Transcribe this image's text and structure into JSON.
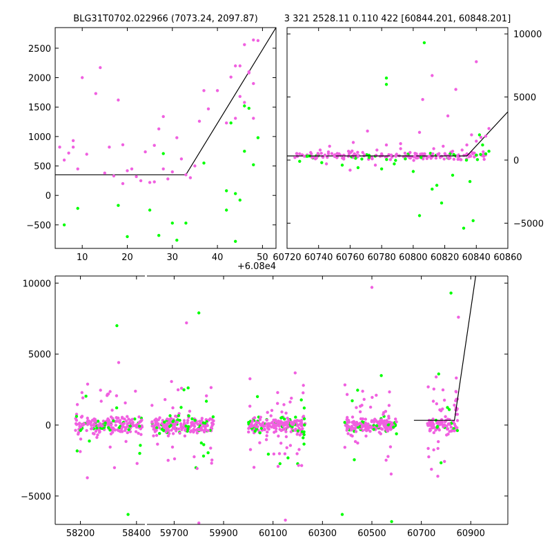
{
  "colors": {
    "magenta": "#f060e0",
    "green": "#00ff00",
    "model": "#000000"
  },
  "chart_data": [
    {
      "type": "scatter",
      "panel": "zoom-peak",
      "title": "BLG31T0702.022966 (7073.24, 2097.87)",
      "xlim": [
        4,
        53
      ],
      "ylim": [
        -900,
        2850
      ],
      "x_offset_label": "+6.08e4",
      "xticks": [
        10,
        20,
        30,
        40,
        50
      ],
      "yticks": [
        -500,
        0,
        500,
        1000,
        1500,
        2000,
        2500
      ],
      "xtick_labels": [
        "10",
        "20",
        "30",
        "40",
        "50"
      ],
      "ytick_labels": [
        "−500",
        "0",
        "500",
        "1000",
        "1500",
        "2000",
        "2500"
      ],
      "model_line": {
        "x": [
          4,
          33,
          53
        ],
        "y": [
          350,
          350,
          2850
        ]
      },
      "series": [
        {
          "name": "magenta",
          "x": [
            5,
            6,
            7,
            8,
            8,
            9,
            10,
            11,
            13,
            14,
            15,
            16,
            17,
            18,
            19,
            19,
            20,
            21,
            22,
            23,
            24,
            25,
            26,
            26,
            27,
            28,
            28,
            29,
            30,
            31,
            32,
            33,
            34,
            35,
            36,
            37,
            38,
            40,
            42,
            43,
            44,
            44,
            45,
            46,
            46,
            47,
            48,
            48,
            49,
            48,
            47,
            45
          ],
          "y": [
            820,
            600,
            720,
            930,
            820,
            450,
            2000,
            700,
            1730,
            2170,
            380,
            820,
            330,
            1620,
            200,
            860,
            420,
            450,
            320,
            250,
            740,
            220,
            850,
            230,
            1130,
            1340,
            450,
            280,
            400,
            980,
            620,
            350,
            300,
            500,
            1260,
            1780,
            1470,
            1780,
            1230,
            2010,
            1310,
            2200,
            1680,
            2560,
            1580,
            2100,
            1310,
            1900,
            2630,
            2640,
            2080,
            2200
          ]
        },
        {
          "name": "green",
          "x": [
            6,
            9,
            18,
            20,
            25,
            27,
            28,
            30,
            31,
            33,
            42,
            43,
            44,
            44,
            46,
            46,
            47,
            48,
            49,
            42,
            37,
            45
          ],
          "y": [
            -500,
            -220,
            -170,
            -700,
            -250,
            -680,
            710,
            -470,
            -760,
            -470,
            -250,
            1230,
            30,
            -780,
            750,
            1520,
            1480,
            520,
            980,
            80,
            550,
            -80
          ]
        }
      ]
    },
    {
      "type": "scatter",
      "panel": "peak-window",
      "title": "3 321 2528.11 0.110 422 [60844.201, 60848.201]",
      "xlim": [
        60720,
        60860
      ],
      "ylim": [
        -7000,
        10500
      ],
      "xticks": [
        60720,
        60740,
        60760,
        60780,
        60800,
        60820,
        60840,
        60860
      ],
      "yticks": [
        -5000,
        0,
        5000,
        10000
      ],
      "xtick_labels": [
        "60720",
        "60740",
        "60760",
        "60780",
        "60800",
        "60820",
        "60840",
        "60860"
      ],
      "ytick_labels": [
        "−5000",
        "0",
        "5000",
        "10000"
      ],
      "model_line": {
        "x": [
          60720,
          60834,
          60860
        ],
        "y": [
          330,
          330,
          3830
        ]
      },
      "series": [
        {
          "name": "magenta",
          "x": [
            60725,
            60728,
            60731,
            60735,
            60738,
            60741,
            60744,
            60747,
            60750,
            60753,
            60756,
            60759,
            60762,
            60765,
            60768,
            60771,
            60774,
            60777,
            60780,
            60783,
            60786,
            60789,
            60792,
            60795,
            60798,
            60801,
            60804,
            60807,
            60810,
            60813,
            60816,
            60819,
            60822,
            60825,
            60828,
            60831,
            60834,
            60837,
            60840,
            60843,
            60846,
            60848,
            60827,
            60806,
            60812,
            60792,
            60840,
            60822,
            60776,
            60760,
            60745
          ],
          "y": [
            200,
            500,
            300,
            600,
            100,
            800,
            400,
            1100,
            300,
            500,
            200,
            700,
            1400,
            300,
            600,
            2300,
            100,
            800,
            500,
            1200,
            400,
            300,
            900,
            100,
            600,
            300,
            2200,
            500,
            300,
            900,
            400,
            1100,
            200,
            700,
            300,
            800,
            1200,
            2000,
            1500,
            1800,
            1900,
            2500,
            5600,
            4800,
            6700,
            1300,
            7800,
            3500,
            -400,
            -800,
            -300
          ]
        },
        {
          "name": "green",
          "x": [
            60728,
            60733,
            60742,
            60755,
            60765,
            60772,
            60780,
            60783,
            60788,
            60795,
            60800,
            60804,
            60807,
            60812,
            60818,
            60825,
            60832,
            60838,
            60842,
            60844,
            60846,
            60848,
            60836,
            60815,
            60805,
            60783
          ],
          "y": [
            -100,
            300,
            -200,
            -400,
            -600,
            200,
            -700,
            6500,
            -300,
            100,
            -900,
            -4400,
            9300,
            -2300,
            -3400,
            -1200,
            -5400,
            -4800,
            2000,
            1200,
            500,
            700,
            -1700,
            -2000,
            200,
            6000
          ]
        }
      ]
    },
    {
      "type": "scatter",
      "panel": "full-light-curve",
      "xlim": [
        58110,
        61050
      ],
      "ylim": [
        -7000,
        10500
      ],
      "xticks": [
        58200,
        58400,
        59700,
        59900,
        60100,
        60300,
        60500,
        60700,
        60900
      ],
      "yticks": [
        -5000,
        0,
        5000,
        10000
      ],
      "xtick_labels": [
        "58200",
        "58400",
        "59700",
        "59900",
        "60100",
        "60300",
        "60500",
        "60700",
        "60900"
      ],
      "ytick_labels": [
        "−5000",
        "0",
        "5000",
        "10000"
      ],
      "axis_break": [
        58430,
        59590
      ],
      "model_line": {
        "x": [
          60670,
          60834,
          60920
        ],
        "y": [
          330,
          330,
          10500
        ]
      },
      "seasons": [
        {
          "start": 58180,
          "end": 58420,
          "n": 230,
          "spread": 600,
          "outlier_rate": 0.22
        },
        {
          "start": 59610,
          "end": 59860,
          "n": 230,
          "spread": 650,
          "outlier_rate": 0.22
        },
        {
          "start": 60000,
          "end": 60230,
          "n": 240,
          "spread": 600,
          "outlier_rate": 0.22
        },
        {
          "start": 60390,
          "end": 60600,
          "n": 220,
          "spread": 550,
          "outlier_rate": 0.22
        },
        {
          "start": 60725,
          "end": 60848,
          "n": 110,
          "spread": 500,
          "outlier_rate": 0.3
        }
      ],
      "annotated_points": [
        {
          "series": "green",
          "x": 58330,
          "y": 7000
        },
        {
          "series": "green",
          "x": 59800,
          "y": 7900
        },
        {
          "series": "magenta",
          "x": 59750,
          "y": 7200
        },
        {
          "series": "magenta",
          "x": 60500,
          "y": 9700
        },
        {
          "series": "green",
          "x": 60820,
          "y": 9300
        },
        {
          "series": "magenta",
          "x": 60850,
          "y": 7600
        },
        {
          "series": "green",
          "x": 58370,
          "y": -6300
        },
        {
          "series": "green",
          "x": 60380,
          "y": -6300
        },
        {
          "series": "green",
          "x": 60580,
          "y": -6800
        },
        {
          "series": "magenta",
          "x": 59800,
          "y": -6900
        },
        {
          "series": "magenta",
          "x": 60150,
          "y": -6700
        }
      ],
      "series": [
        {
          "name": "magenta"
        },
        {
          "name": "green"
        }
      ]
    }
  ]
}
